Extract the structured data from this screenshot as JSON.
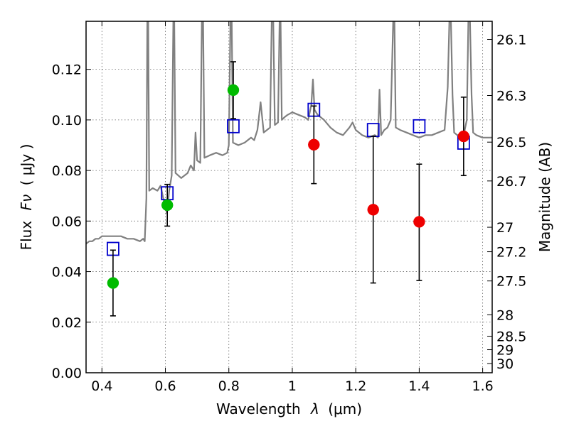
{
  "chart_data": {
    "type": "scatter",
    "xlabel_text": "Wavelength",
    "xlabel_symbol": "λ",
    "xlabel_unit": "(μm)",
    "ylabel_text": "Flux",
    "ylabel_symbol": "Fν",
    "ylabel_unit": "( μJy )",
    "right_ylabel": "Magnitude (AB)",
    "xlim": [
      0.35,
      1.63
    ],
    "ylim": [
      0.0,
      0.139
    ],
    "grid": true,
    "x_ticks": [
      {
        "value": 0.4,
        "label": "0.4"
      },
      {
        "value": 0.6,
        "label": "0.6"
      },
      {
        "value": 0.8,
        "label": "0.8"
      },
      {
        "value": 1.0,
        "label": "1"
      },
      {
        "value": 1.2,
        "label": "1.2"
      },
      {
        "value": 1.4,
        "label": "1.4"
      },
      {
        "value": 1.6,
        "label": "1.6"
      }
    ],
    "y_ticks": [
      {
        "value": 0.0,
        "label": "0.00"
      },
      {
        "value": 0.02,
        "label": "0.02"
      },
      {
        "value": 0.04,
        "label": "0.04"
      },
      {
        "value": 0.06,
        "label": "0.06"
      },
      {
        "value": 0.08,
        "label": "0.08"
      },
      {
        "value": 0.1,
        "label": "0.10"
      },
      {
        "value": 0.12,
        "label": "0.12"
      }
    ],
    "right_y_ticks": [
      {
        "value": 26.1,
        "label": "26.1"
      },
      {
        "value": 26.3,
        "label": "26.3"
      },
      {
        "value": 26.5,
        "label": "26.5"
      },
      {
        "value": 26.7,
        "label": "26.7"
      },
      {
        "value": 27.0,
        "label": "27"
      },
      {
        "value": 27.2,
        "label": "27.2"
      },
      {
        "value": 27.5,
        "label": "27.5"
      },
      {
        "value": 28.0,
        "label": "28"
      },
      {
        "value": 28.5,
        "label": "28.5"
      },
      {
        "value": 29.0,
        "label": "29"
      },
      {
        "value": 30.0,
        "label": "30"
      }
    ],
    "series": [
      {
        "kind": "spectrum",
        "color": "#808080",
        "points": [
          [
            0.35,
            0.051
          ],
          [
            0.36,
            0.052
          ],
          [
            0.37,
            0.052
          ],
          [
            0.38,
            0.053
          ],
          [
            0.39,
            0.053
          ],
          [
            0.4,
            0.054
          ],
          [
            0.42,
            0.054
          ],
          [
            0.44,
            0.054
          ],
          [
            0.46,
            0.054
          ],
          [
            0.48,
            0.053
          ],
          [
            0.5,
            0.053
          ],
          [
            0.52,
            0.052
          ],
          [
            0.53,
            0.053
          ],
          [
            0.535,
            0.052
          ],
          [
            0.54,
            0.069
          ],
          [
            0.543,
            0.139
          ],
          [
            0.546,
            0.139
          ],
          [
            0.549,
            0.072
          ],
          [
            0.56,
            0.073
          ],
          [
            0.575,
            0.072
          ],
          [
            0.585,
            0.074
          ],
          [
            0.595,
            0.068
          ],
          [
            0.605,
            0.063
          ],
          [
            0.612,
            0.072
          ],
          [
            0.62,
            0.078
          ],
          [
            0.625,
            0.139
          ],
          [
            0.628,
            0.139
          ],
          [
            0.632,
            0.079
          ],
          [
            0.65,
            0.077
          ],
          [
            0.67,
            0.079
          ],
          [
            0.68,
            0.082
          ],
          [
            0.69,
            0.08
          ],
          [
            0.695,
            0.095
          ],
          [
            0.7,
            0.084
          ],
          [
            0.71,
            0.083
          ],
          [
            0.715,
            0.139
          ],
          [
            0.719,
            0.139
          ],
          [
            0.723,
            0.085
          ],
          [
            0.74,
            0.086
          ],
          [
            0.76,
            0.087
          ],
          [
            0.78,
            0.086
          ],
          [
            0.795,
            0.087
          ],
          [
            0.8,
            0.09
          ],
          [
            0.805,
            0.139
          ],
          [
            0.809,
            0.139
          ],
          [
            0.813,
            0.091
          ],
          [
            0.83,
            0.09
          ],
          [
            0.85,
            0.091
          ],
          [
            0.87,
            0.093
          ],
          [
            0.88,
            0.092
          ],
          [
            0.89,
            0.096
          ],
          [
            0.9,
            0.107
          ],
          [
            0.91,
            0.095
          ],
          [
            0.93,
            0.097
          ],
          [
            0.935,
            0.139
          ],
          [
            0.94,
            0.139
          ],
          [
            0.945,
            0.098
          ],
          [
            0.955,
            0.099
          ],
          [
            0.96,
            0.139
          ],
          [
            0.963,
            0.139
          ],
          [
            0.967,
            0.1
          ],
          [
            0.975,
            0.101
          ],
          [
            0.985,
            0.102
          ],
          [
            1.0,
            0.103
          ],
          [
            1.02,
            0.102
          ],
          [
            1.04,
            0.101
          ],
          [
            1.05,
            0.1
          ],
          [
            1.06,
            0.106
          ],
          [
            1.065,
            0.116
          ],
          [
            1.07,
            0.104
          ],
          [
            1.08,
            0.102
          ],
          [
            1.1,
            0.1
          ],
          [
            1.12,
            0.097
          ],
          [
            1.14,
            0.095
          ],
          [
            1.16,
            0.094
          ],
          [
            1.18,
            0.097
          ],
          [
            1.19,
            0.099
          ],
          [
            1.2,
            0.096
          ],
          [
            1.22,
            0.094
          ],
          [
            1.24,
            0.093
          ],
          [
            1.26,
            0.094
          ],
          [
            1.27,
            0.093
          ],
          [
            1.275,
            0.112
          ],
          [
            1.28,
            0.094
          ],
          [
            1.29,
            0.096
          ],
          [
            1.3,
            0.097
          ],
          [
            1.31,
            0.1
          ],
          [
            1.318,
            0.139
          ],
          [
            1.322,
            0.139
          ],
          [
            1.326,
            0.097
          ],
          [
            1.34,
            0.096
          ],
          [
            1.36,
            0.095
          ],
          [
            1.38,
            0.094
          ],
          [
            1.4,
            0.093
          ],
          [
            1.42,
            0.094
          ],
          [
            1.44,
            0.094
          ],
          [
            1.46,
            0.095
          ],
          [
            1.48,
            0.096
          ],
          [
            1.49,
            0.113
          ],
          [
            1.495,
            0.139
          ],
          [
            1.5,
            0.139
          ],
          [
            1.505,
            0.11
          ],
          [
            1.51,
            0.095
          ],
          [
            1.52,
            0.094
          ],
          [
            1.54,
            0.094
          ],
          [
            1.55,
            0.1
          ],
          [
            1.555,
            0.139
          ],
          [
            1.56,
            0.139
          ],
          [
            1.565,
            0.11
          ],
          [
            1.57,
            0.095
          ],
          [
            1.58,
            0.094
          ],
          [
            1.6,
            0.093
          ],
          [
            1.63,
            0.093
          ]
        ]
      },
      {
        "kind": "model-photometry",
        "marker": "open-square",
        "color": "#0000cc",
        "points": [
          [
            0.435,
            0.049
          ],
          [
            0.606,
            0.071
          ],
          [
            0.814,
            0.0975
          ],
          [
            1.068,
            0.104
          ],
          [
            1.255,
            0.096
          ],
          [
            1.4,
            0.0975
          ],
          [
            1.54,
            0.091
          ]
        ]
      },
      {
        "kind": "measured-photometry",
        "marker": "filled-circle",
        "color": "#00bb00",
        "points": [
          {
            "x": 0.435,
            "y": 0.0355,
            "err_lo": 0.0225,
            "err_hi": 0.0485
          },
          {
            "x": 0.606,
            "y": 0.0663,
            "err_lo": 0.058,
            "err_hi": 0.0745
          },
          {
            "x": 0.814,
            "y": 0.1118,
            "err_lo": 0.1005,
            "err_hi": 0.123
          }
        ]
      },
      {
        "kind": "measured-photometry",
        "marker": "filled-circle",
        "color": "#ee0000",
        "points": [
          {
            "x": 1.068,
            "y": 0.0902,
            "err_lo": 0.0748,
            "err_hi": 0.1055
          },
          {
            "x": 1.255,
            "y": 0.0645,
            "err_lo": 0.0355,
            "err_hi": 0.0935
          },
          {
            "x": 1.4,
            "y": 0.0597,
            "err_lo": 0.0365,
            "err_hi": 0.0825
          },
          {
            "x": 1.54,
            "y": 0.0935,
            "err_lo": 0.078,
            "err_hi": 0.109
          }
        ]
      }
    ]
  }
}
